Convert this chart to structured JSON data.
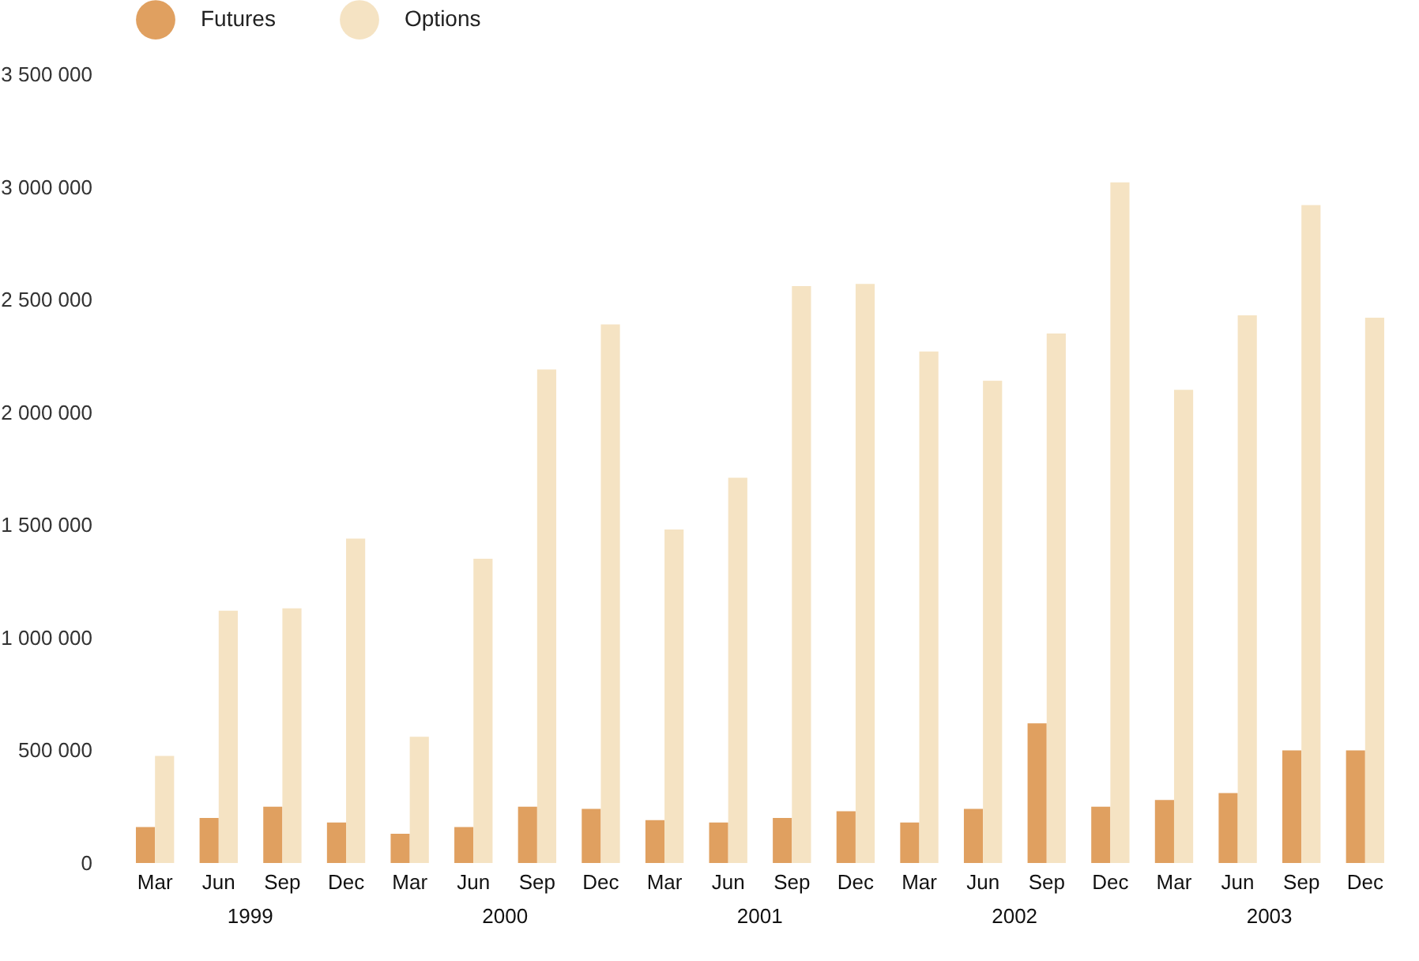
{
  "chart_data": {
    "type": "bar",
    "categories": [
      "Mar",
      "Jun",
      "Sep",
      "Dec",
      "Mar",
      "Jun",
      "Sep",
      "Dec",
      "Mar",
      "Jun",
      "Sep",
      "Dec",
      "Mar",
      "Jun",
      "Sep",
      "Dec",
      "Mar",
      "Jun",
      "Sep",
      "Dec"
    ],
    "series": [
      {
        "name": "Futures",
        "color": "#e0a060",
        "values": [
          160000,
          200000,
          250000,
          180000,
          130000,
          160000,
          250000,
          240000,
          190000,
          180000,
          200000,
          230000,
          180000,
          240000,
          620000,
          250000,
          280000,
          310000,
          500000,
          500000
        ]
      },
      {
        "name": "Options",
        "color": "#f5e3c3",
        "values": [
          475000,
          1120000,
          1130000,
          1440000,
          560000,
          1350000,
          2190000,
          2390000,
          1480000,
          1710000,
          2560000,
          2570000,
          2270000,
          2140000,
          2350000,
          3020000,
          2100000,
          2430000,
          2920000,
          2420000
        ]
      }
    ],
    "annotations": [
      "1999",
      "2000",
      "2001",
      "2002",
      "2003"
    ],
    "ylim": [
      0,
      3500000
    ],
    "yticks": [
      {
        "value": 0,
        "label": "0"
      },
      {
        "value": 500000,
        "label": "500 000"
      },
      {
        "value": 1000000,
        "label": "1 000 000"
      },
      {
        "value": 1500000,
        "label": "1 500 000"
      },
      {
        "value": 2000000,
        "label": "2 000 000"
      },
      {
        "value": 2500000,
        "label": "2 500 000"
      },
      {
        "value": 3000000,
        "label": "3 000 000"
      },
      {
        "value": 3500000,
        "label": "3 500 000"
      }
    ],
    "grid": false,
    "legend": "top left"
  }
}
